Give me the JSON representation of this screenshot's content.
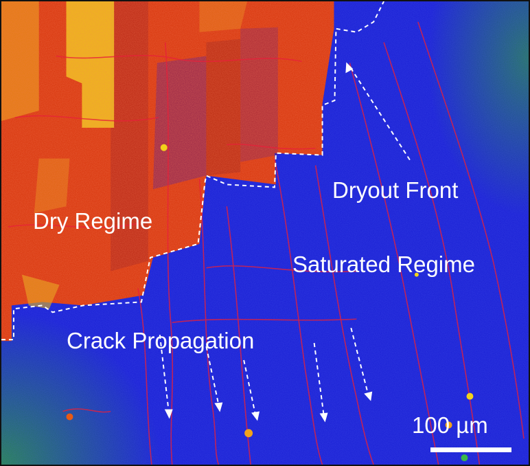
{
  "figure": {
    "labels": {
      "dry_regime": "Dry Regime",
      "dryout_front": "Dryout Front",
      "saturated_regime": "Saturated Regime",
      "crack_propagation": "Crack Propagation"
    },
    "scale_bar": {
      "text": "100 µm"
    },
    "colors": {
      "saturated": "#1c22d6",
      "dry": "#d8360c",
      "dry_hot": "#f2d21a",
      "crack": "#e8203a",
      "edge_green": "#2a8a4a",
      "annotation": "#ffffff"
    }
  }
}
